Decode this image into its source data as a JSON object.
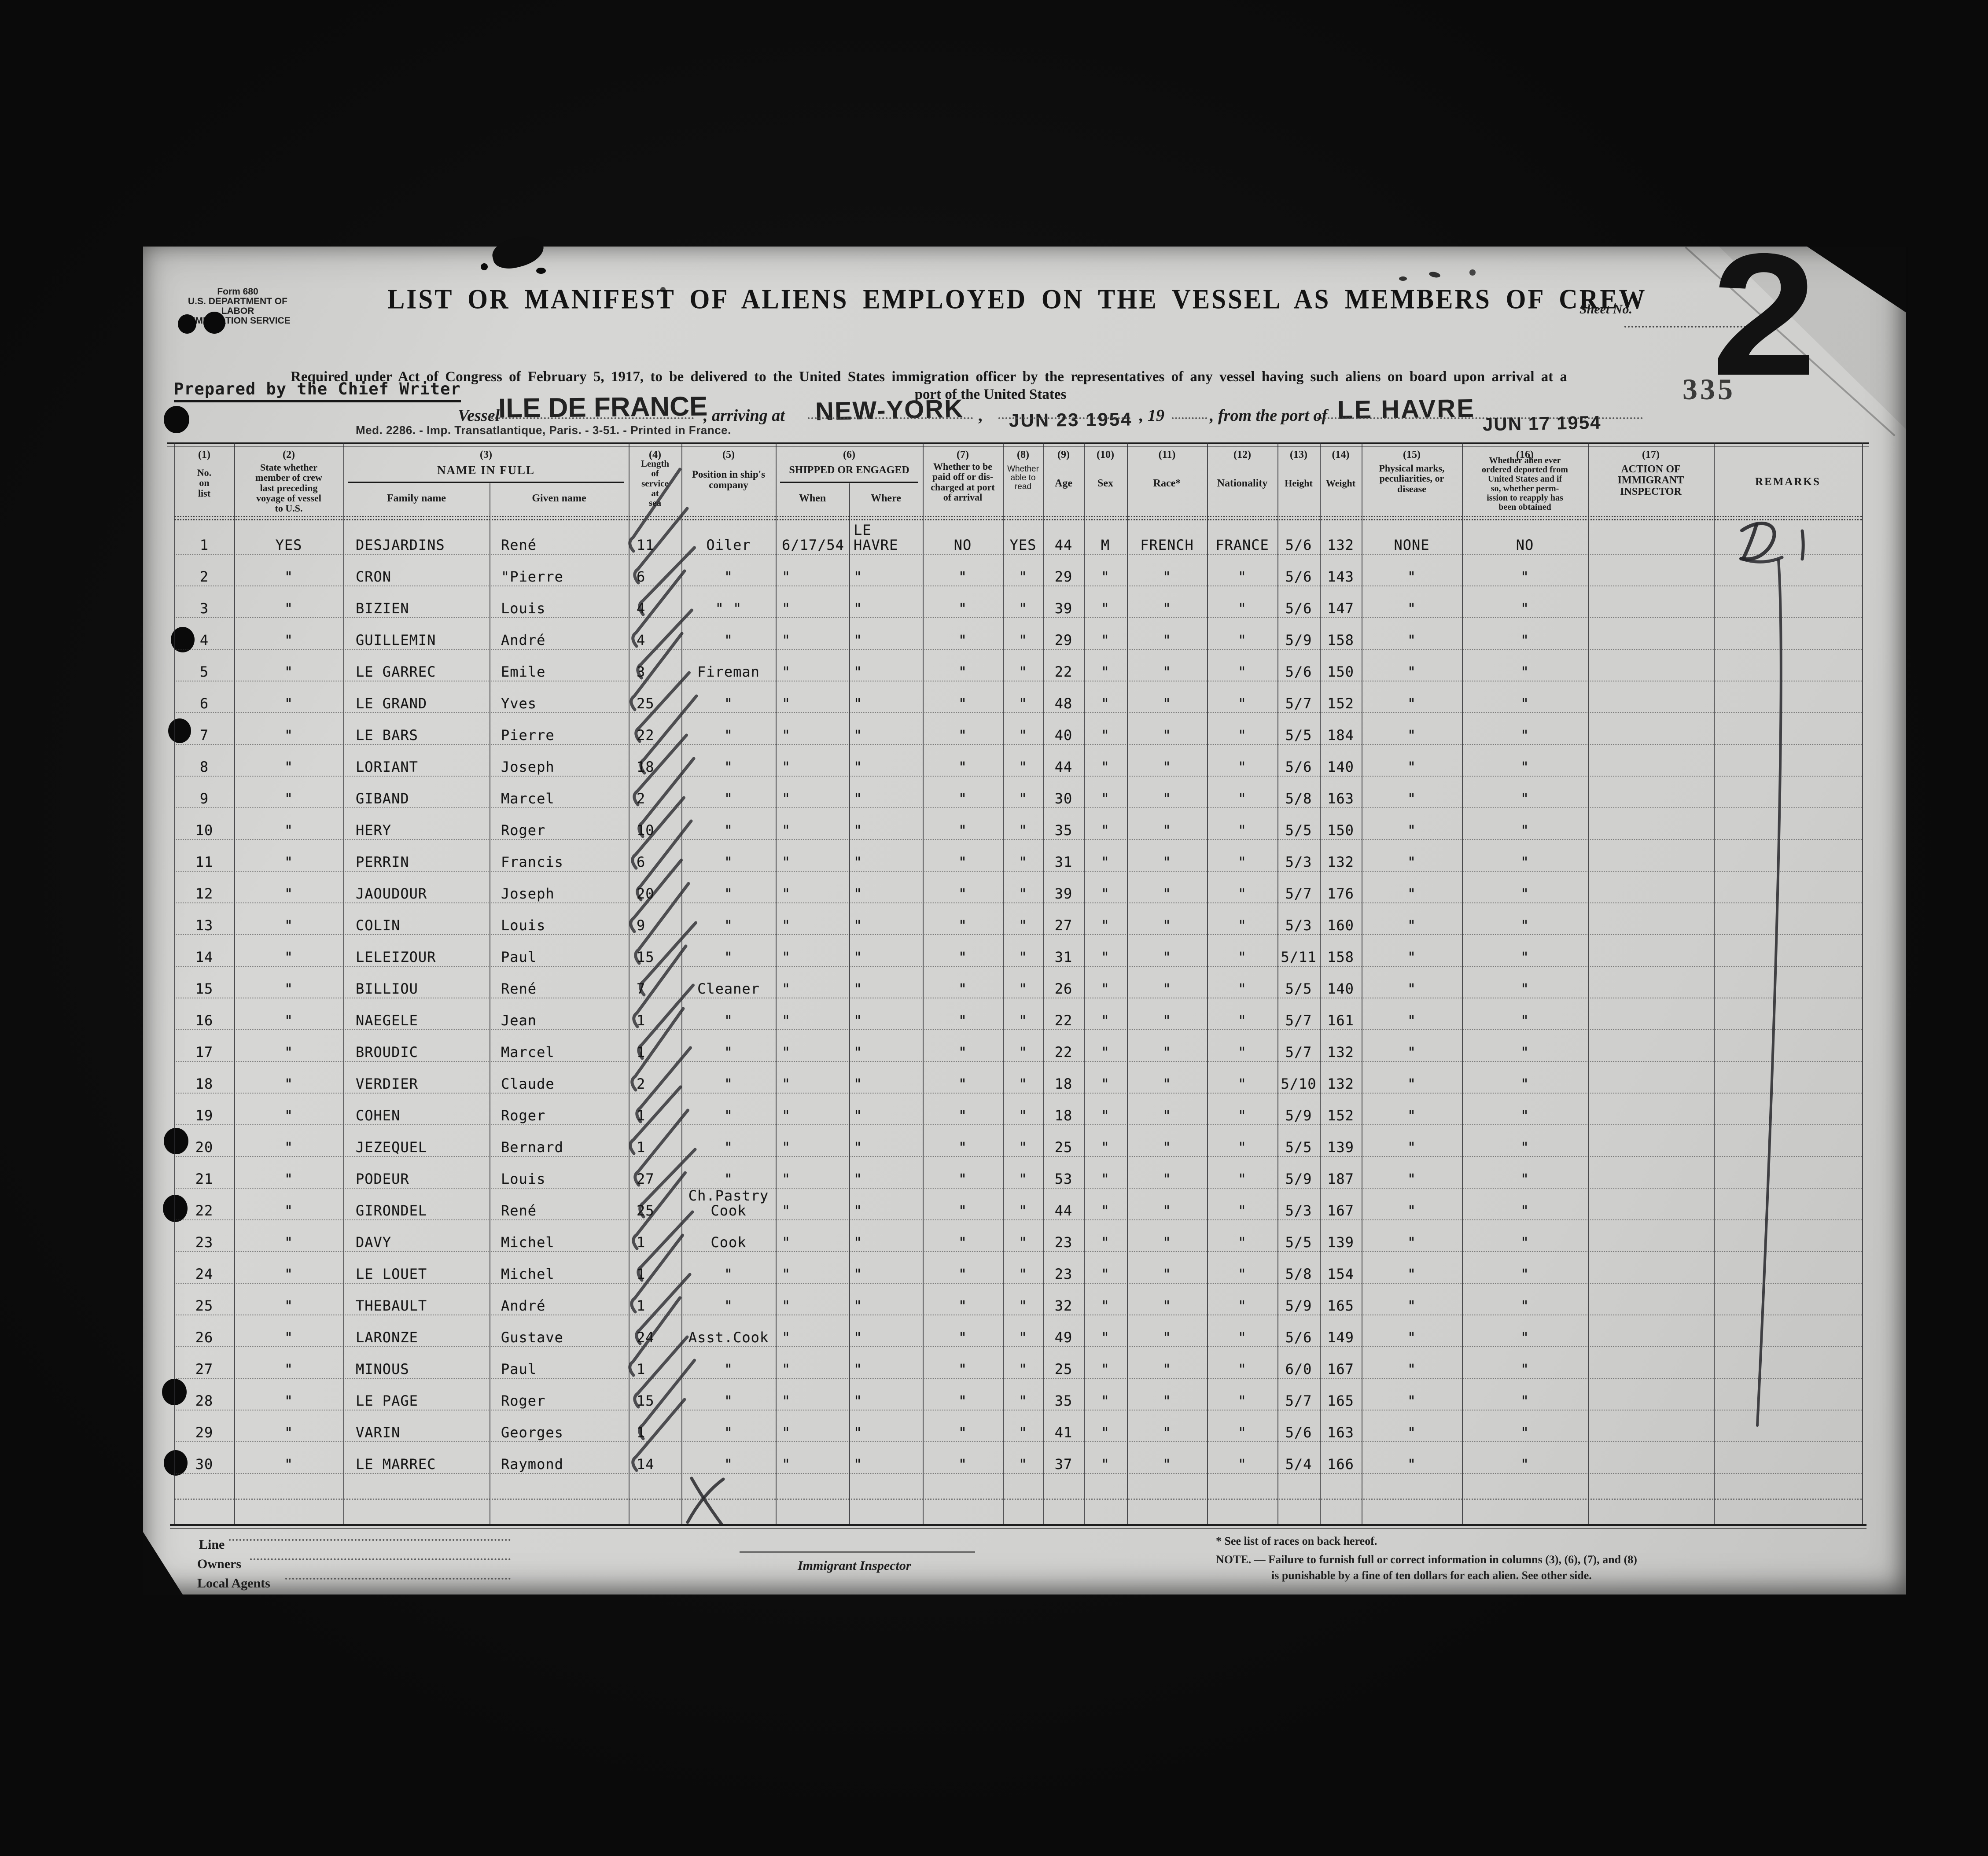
{
  "form": {
    "form_no": "Form 680",
    "agency1": "U.S. DEPARTMENT OF LABOR",
    "agency2": "IMMIGRATION SERVICE",
    "title": "LIST OR MANIFEST OF ALIENS EMPLOYED ON THE VESSEL AS MEMBERS OF CREW",
    "sheet_no_label": "Sheet No.",
    "sheet_no": "2",
    "act_line": "Required under Act of Congress of February 5, 1917, to be delivered to the United States immigration officer by the representatives of any vessel having such aliens on board upon arrival at a",
    "act_line2": "port of the United States",
    "prepared_by": "Prepared by the Chief Writer",
    "vessel_label": "Vessel",
    "vessel_name": "ILE DE FRANCE",
    "arriving_label": ", arriving at",
    "arrival_port": "NEW-YORK",
    "comma": ",",
    "arrival_date_stamp": "JUN 23 1954",
    "year_label": ", 19",
    "from_port_label": ", from the port of",
    "departure_port": "LE HAVRE",
    "departure_date_stamp": "JUN 17 1954",
    "page_stamp": "335",
    "printer_line": "Med. 2286. - Imp. Transatlantique, Paris. - 3-51. - Printed in France."
  },
  "table_header": {
    "nums": [
      "(1)",
      "(2)",
      "(3)",
      "(4)",
      "(5)",
      "(6)",
      "(7)",
      "(8)",
      "(9)",
      "(10)",
      "(11)",
      "(12)",
      "(13)",
      "(14)",
      "(15)",
      "(16)",
      "(17)"
    ],
    "col1": "No.\non\nlist",
    "col2": "State whether\nmember of crew\nlast preceding\nvoyage of vessel\nto U.S.",
    "col3": "NAME IN FULL",
    "col3_sub_family": "Family name",
    "col3_sub_given": "Given name",
    "col4": "Length\nof\nservice\nat\nsea",
    "col5": "Position in ship's\ncompany",
    "col6": "SHIPPED OR ENGAGED",
    "col6_sub_when": "When",
    "col6_sub_where": "Where",
    "col7": "Whether to be\npaid off or dis-\ncharged at port\nof arrival",
    "col8": "Whether\nable to\nread",
    "col9": "Age",
    "col10": "Sex",
    "col11": "Race*",
    "col12": "Nationality",
    "col13": "Height",
    "col14": "Weight",
    "col15": "Physical marks,\npeculiarities, or\ndisease",
    "col16": "Whether alien ever\nordered deported from\nUnited States and if\nso, whether perm-\nission to reapply has\nbeen obtained",
    "col17": "ACTION OF\nIMMIGRANT\nINSPECTOR",
    "remarks": "REMARKS"
  },
  "fields": [
    "no",
    "crew_prior_voyage",
    "family_name",
    "given_name",
    "length_of_service",
    "position",
    "shipped_when",
    "shipped_where",
    "paid_off",
    "able_to_read",
    "age",
    "sex",
    "race",
    "nationality",
    "height",
    "weight",
    "physical_marks",
    "ever_deported",
    "inspector_action",
    "remarks"
  ],
  "rows": [
    [
      "1",
      "YES",
      "DESJARDINS",
      "René",
      "11",
      "Oiler",
      "6/17/54",
      "LE HAVRE",
      "NO",
      "YES",
      "44",
      "M",
      "FRENCH",
      "FRANCE",
      "5/6",
      "132",
      "NONE",
      "NO",
      "",
      ""
    ],
    [
      "2",
      "\"",
      "CRON",
      "\"Pierre",
      "6",
      "\"",
      "\"",
      "\"",
      "\"",
      "\"",
      "29",
      "\"",
      "\"",
      "\"",
      "5/6",
      "143",
      "\"",
      "\"",
      "",
      ""
    ],
    [
      "3",
      "\"",
      "BIZIEN",
      "Louis",
      "4",
      "\" \"",
      "\"",
      "\"",
      "\"",
      "\"",
      "39",
      "\"",
      "\"",
      "\"",
      "5/6",
      "147",
      "\"",
      "\"",
      "",
      ""
    ],
    [
      "4",
      "\"",
      "GUILLEMIN",
      "André",
      "4",
      "\"",
      "\"",
      "\"",
      "\"",
      "\"",
      "29",
      "\"",
      "\"",
      "\"",
      "5/9",
      "158",
      "\"",
      "\"",
      "",
      ""
    ],
    [
      "5",
      "\"",
      "LE GARREC",
      "Emile",
      "3",
      "Fireman",
      "\"",
      "\"",
      "\"",
      "\"",
      "22",
      "\"",
      "\"",
      "\"",
      "5/6",
      "150",
      "\"",
      "\"",
      "",
      ""
    ],
    [
      "6",
      "\"",
      "LE GRAND",
      "Yves",
      "25",
      "\"",
      "\"",
      "\"",
      "\"",
      "\"",
      "48",
      "\"",
      "\"",
      "\"",
      "5/7",
      "152",
      "\"",
      "\"",
      "",
      ""
    ],
    [
      "7",
      "\"",
      "LE BARS",
      "Pierre",
      "22",
      "\"",
      "\"",
      "\"",
      "\"",
      "\"",
      "40",
      "\"",
      "\"",
      "\"",
      "5/5",
      "184",
      "\"",
      "\"",
      "",
      ""
    ],
    [
      "8",
      "\"",
      "LORIANT",
      "Joseph",
      "18",
      "\"",
      "\"",
      "\"",
      "\"",
      "\"",
      "44",
      "\"",
      "\"",
      "\"",
      "5/6",
      "140",
      "\"",
      "\"",
      "",
      ""
    ],
    [
      "9",
      "\"",
      "GIBAND",
      "Marcel",
      "2",
      "\"",
      "\"",
      "\"",
      "\"",
      "\"",
      "30",
      "\"",
      "\"",
      "\"",
      "5/8",
      "163",
      "\"",
      "\"",
      "",
      ""
    ],
    [
      "10",
      "\"",
      "HERY",
      "Roger",
      "10",
      "\"",
      "\"",
      "\"",
      "\"",
      "\"",
      "35",
      "\"",
      "\"",
      "\"",
      "5/5",
      "150",
      "\"",
      "\"",
      "",
      ""
    ],
    [
      "11",
      "\"",
      "PERRIN",
      "Francis",
      "6",
      "\"",
      "\"",
      "\"",
      "\"",
      "\"",
      "31",
      "\"",
      "\"",
      "\"",
      "5/3",
      "132",
      "\"",
      "\"",
      "",
      ""
    ],
    [
      "12",
      "\"",
      "JAOUDOUR",
      "Joseph",
      "20",
      "\"",
      "\"",
      "\"",
      "\"",
      "\"",
      "39",
      "\"",
      "\"",
      "\"",
      "5/7",
      "176",
      "\"",
      "\"",
      "",
      ""
    ],
    [
      "13",
      "\"",
      "COLIN",
      "Louis",
      "9",
      "\"",
      "\"",
      "\"",
      "\"",
      "\"",
      "27",
      "\"",
      "\"",
      "\"",
      "5/3",
      "160",
      "\"",
      "\"",
      "",
      ""
    ],
    [
      "14",
      "\"",
      "LELEIZOUR",
      "Paul",
      "15",
      "\"",
      "\"",
      "\"",
      "\"",
      "\"",
      "31",
      "\"",
      "\"",
      "\"",
      "5/11",
      "158",
      "\"",
      "\"",
      "",
      ""
    ],
    [
      "15",
      "\"",
      "BILLIOU",
      "René",
      "7",
      "Cleaner",
      "\"",
      "\"",
      "\"",
      "\"",
      "26",
      "\"",
      "\"",
      "\"",
      "5/5",
      "140",
      "\"",
      "\"",
      "",
      ""
    ],
    [
      "16",
      "\"",
      "NAEGELE",
      "Jean",
      "1",
      "\"",
      "\"",
      "\"",
      "\"",
      "\"",
      "22",
      "\"",
      "\"",
      "\"",
      "5/7",
      "161",
      "\"",
      "\"",
      "",
      ""
    ],
    [
      "17",
      "\"",
      "BROUDIC",
      "Marcel",
      "1",
      "\"",
      "\"",
      "\"",
      "\"",
      "\"",
      "22",
      "\"",
      "\"",
      "\"",
      "5/7",
      "132",
      "\"",
      "\"",
      "",
      ""
    ],
    [
      "18",
      "\"",
      "VERDIER",
      "Claude",
      "2",
      "\"",
      "\"",
      "\"",
      "\"",
      "\"",
      "18",
      "\"",
      "\"",
      "\"",
      "5/10",
      "132",
      "\"",
      "\"",
      "",
      ""
    ],
    [
      "19",
      "\"",
      "COHEN",
      "Roger",
      "1",
      "\"",
      "\"",
      "\"",
      "\"",
      "\"",
      "18",
      "\"",
      "\"",
      "\"",
      "5/9",
      "152",
      "\"",
      "\"",
      "",
      ""
    ],
    [
      "20",
      "\"",
      "JEZEQUEL",
      "Bernard",
      "1",
      "\"",
      "\"",
      "\"",
      "\"",
      "\"",
      "25",
      "\"",
      "\"",
      "\"",
      "5/5",
      "139",
      "\"",
      "\"",
      "",
      ""
    ],
    [
      "21",
      "\"",
      "PODEUR",
      "Louis",
      "27",
      "\"",
      "\"",
      "\"",
      "\"",
      "\"",
      "53",
      "\"",
      "\"",
      "\"",
      "5/9",
      "187",
      "\"",
      "\"",
      "",
      ""
    ],
    [
      "22",
      "\"",
      "GIRONDEL",
      "René",
      "25",
      "Ch.Pastry Cook",
      "\"",
      "\"",
      "\"",
      "\"",
      "44",
      "\"",
      "\"",
      "\"",
      "5/3",
      "167",
      "\"",
      "\"",
      "",
      ""
    ],
    [
      "23",
      "\"",
      "DAVY",
      "Michel",
      "1",
      "Cook",
      "\"",
      "\"",
      "\"",
      "\"",
      "23",
      "\"",
      "\"",
      "\"",
      "5/5",
      "139",
      "\"",
      "\"",
      "",
      ""
    ],
    [
      "24",
      "\"",
      "LE LOUET",
      "Michel",
      "1",
      "\"",
      "\"",
      "\"",
      "\"",
      "\"",
      "23",
      "\"",
      "\"",
      "\"",
      "5/8",
      "154",
      "\"",
      "\"",
      "",
      ""
    ],
    [
      "25",
      "\"",
      "THEBAULT",
      "André",
      "1",
      "\"",
      "\"",
      "\"",
      "\"",
      "\"",
      "32",
      "\"",
      "\"",
      "\"",
      "5/9",
      "165",
      "\"",
      "\"",
      "",
      ""
    ],
    [
      "26",
      "\"",
      "LARONZE",
      "Gustave",
      "24",
      "Asst.Cook",
      "\"",
      "\"",
      "\"",
      "\"",
      "49",
      "\"",
      "\"",
      "\"",
      "5/6",
      "149",
      "\"",
      "\"",
      "",
      ""
    ],
    [
      "27",
      "\"",
      "MINOUS",
      "Paul",
      "1",
      "\"",
      "\"",
      "\"",
      "\"",
      "\"",
      "25",
      "\"",
      "\"",
      "\"",
      "6/0",
      "167",
      "\"",
      "\"",
      "",
      ""
    ],
    [
      "28",
      "\"",
      "LE PAGE",
      "Roger",
      "15",
      "\"",
      "\"",
      "\"",
      "\"",
      "\"",
      "35",
      "\"",
      "\"",
      "\"",
      "5/7",
      "165",
      "\"",
      "\"",
      "",
      ""
    ],
    [
      "29",
      "\"",
      "VARIN",
      "Georges",
      "1",
      "\"",
      "\"",
      "\"",
      "\"",
      "\"",
      "41",
      "\"",
      "\"",
      "\"",
      "5/6",
      "163",
      "\"",
      "\"",
      "",
      ""
    ],
    [
      "30",
      "\"",
      "LE MARREC",
      "Raymond",
      "14",
      "\"",
      "\"",
      "\"",
      "\"",
      "\"",
      "37",
      "\"",
      "\"",
      "\"",
      "5/4",
      "166",
      "\"",
      "\"",
      "",
      ""
    ]
  ],
  "annotations": {
    "remark_handwritten": "D1",
    "service_checkmarks": "pencil check on every row of column 4",
    "bottom_mark": "X"
  },
  "footer": {
    "line_label": "Line",
    "owners_label": "Owners",
    "local_agents_label": "Local Agents",
    "inspector_label": "Immigrant Inspector",
    "races_note": "* See list of races on back hereof.",
    "note_line1": "NOTE. — Failure to furnish full or correct information in columns (3), (6), (7), and (8)",
    "note_line2": "is punishable by a fine of ten dollars for each alien. See other side."
  }
}
